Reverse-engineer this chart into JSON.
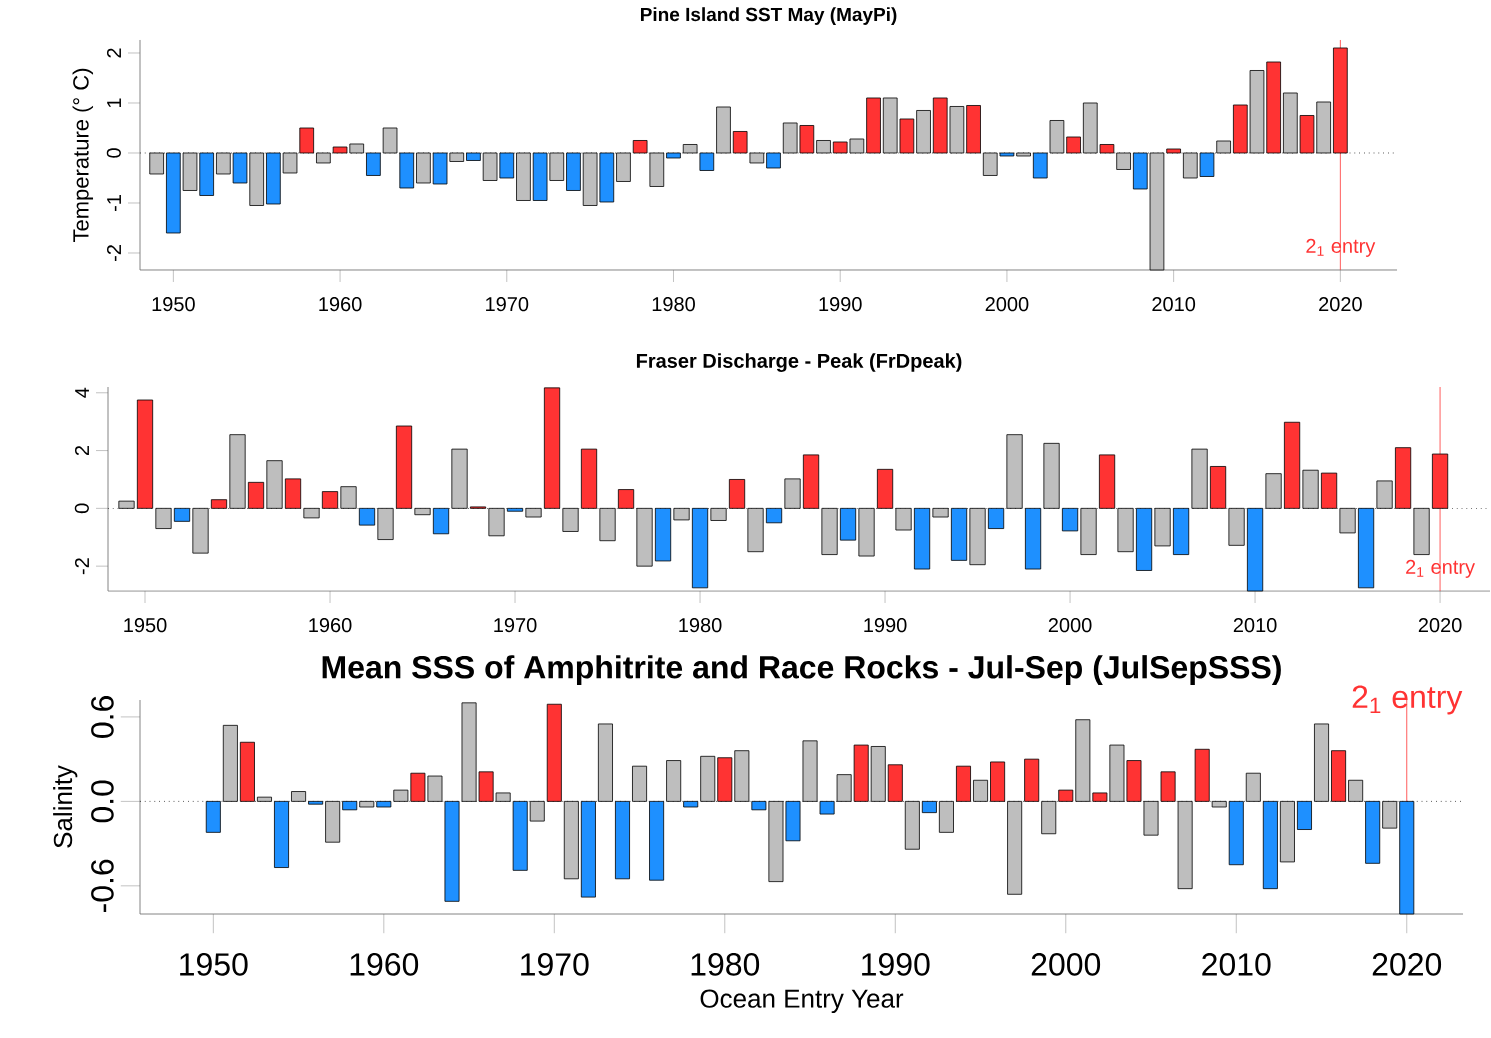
{
  "chart_data": [
    {
      "type": "bar",
      "title": "Pine Island SST May (MayPi)",
      "ylabel": "Temperature (° C)",
      "x": [
        1949,
        1950,
        1951,
        1952,
        1953,
        1954,
        1955,
        1956,
        1957,
        1958,
        1959,
        1960,
        1961,
        1962,
        1963,
        1964,
        1965,
        1966,
        1967,
        1968,
        1969,
        1970,
        1971,
        1972,
        1973,
        1974,
        1975,
        1976,
        1977,
        1978,
        1979,
        1980,
        1981,
        1982,
        1983,
        1984,
        1985,
        1986,
        1987,
        1988,
        1989,
        1990,
        1991,
        1992,
        1993,
        1994,
        1995,
        1996,
        1997,
        1998,
        1999,
        2000,
        2001,
        2002,
        2003,
        2004,
        2005,
        2006,
        2007,
        2008,
        2009,
        2010,
        2011,
        2012,
        2013,
        2014,
        2015,
        2016,
        2017,
        2018,
        2019,
        2020
      ],
      "values": [
        -0.42,
        -1.6,
        -0.75,
        -0.85,
        -0.42,
        -0.6,
        -1.05,
        -1.02,
        -0.4,
        0.5,
        -0.2,
        0.12,
        0.18,
        -0.45,
        0.5,
        -0.7,
        -0.6,
        -0.62,
        -0.17,
        -0.15,
        -0.55,
        -0.5,
        -0.95,
        -0.95,
        -0.55,
        -0.75,
        -1.05,
        -0.98,
        -0.57,
        0.25,
        -0.67,
        -0.1,
        0.17,
        -0.35,
        0.92,
        0.43,
        -0.2,
        -0.3,
        0.6,
        0.55,
        0.25,
        0.22,
        0.28,
        1.1,
        1.1,
        0.68,
        0.85,
        1.1,
        0.93,
        0.95,
        -0.45,
        -0.06,
        -0.06,
        -0.5,
        0.65,
        0.32,
        1.0,
        0.17,
        -0.33,
        -0.72,
        -2.34,
        0.08,
        -0.5,
        -0.47,
        0.24,
        0.96,
        1.65,
        1.82,
        1.2,
        0.75,
        1.02,
        2.1
      ],
      "colors": [
        "#bebebe",
        "#1e90ff",
        "#bebebe",
        "#1e90ff",
        "#bebebe",
        "#1e90ff",
        "#bebebe",
        "#1e90ff",
        "#bebebe",
        "#ff3333",
        "#bebebe",
        "#ff3333",
        "#bebebe",
        "#1e90ff",
        "#bebebe",
        "#1e90ff",
        "#bebebe",
        "#1e90ff",
        "#bebebe",
        "#1e90ff",
        "#bebebe",
        "#1e90ff",
        "#bebebe",
        "#1e90ff",
        "#bebebe",
        "#1e90ff",
        "#bebebe",
        "#1e90ff",
        "#bebebe",
        "#ff3333",
        "#bebebe",
        "#1e90ff",
        "#bebebe",
        "#1e90ff",
        "#bebebe",
        "#ff3333",
        "#bebebe",
        "#1e90ff",
        "#bebebe",
        "#ff3333",
        "#bebebe",
        "#ff3333",
        "#bebebe",
        "#ff3333",
        "#bebebe",
        "#ff3333",
        "#bebebe",
        "#ff3333",
        "#bebebe",
        "#ff3333",
        "#bebebe",
        "#1e90ff",
        "#bebebe",
        "#1e90ff",
        "#bebebe",
        "#ff3333",
        "#bebebe",
        "#ff3333",
        "#bebebe",
        "#1e90ff",
        "#bebebe",
        "#ff3333",
        "#bebebe",
        "#1e90ff",
        "#bebebe",
        "#ff3333",
        "#bebebe",
        "#ff3333",
        "#bebebe",
        "#ff3333",
        "#bebebe",
        "#ff3333"
      ],
      "xlim": [
        1948,
        2023.4
      ],
      "ylim": [
        -2.34,
        2.26
      ],
      "xticks": [
        1950,
        1960,
        1970,
        1980,
        1990,
        2000,
        2010,
        2020
      ],
      "yticks": [
        -2,
        -1,
        0,
        1,
        2
      ],
      "ref_lines": [
        {
          "axis": "y",
          "value": 0,
          "line_style": "dotted",
          "color": "#000000"
        },
        {
          "axis": "x",
          "value": 2020,
          "label": "2$_{1}$ entry",
          "color": "#ff3333"
        }
      ]
    },
    {
      "type": "bar",
      "title": "Fraser Discharge - Peak (FrDpeak)",
      "x": [
        1949,
        1950,
        1951,
        1952,
        1953,
        1954,
        1955,
        1956,
        1957,
        1958,
        1959,
        1960,
        1961,
        1962,
        1963,
        1964,
        1965,
        1966,
        1967,
        1968,
        1969,
        1970,
        1971,
        1972,
        1973,
        1974,
        1975,
        1976,
        1977,
        1978,
        1979,
        1980,
        1981,
        1982,
        1983,
        1984,
        1985,
        1986,
        1987,
        1988,
        1989,
        1990,
        1991,
        1992,
        1993,
        1994,
        1995,
        1996,
        1997,
        1998,
        1999,
        2000,
        2001,
        2002,
        2003,
        2004,
        2005,
        2006,
        2007,
        2008,
        2009,
        2010,
        2011,
        2012,
        2013,
        2014,
        2015,
        2016,
        2017,
        2018,
        2019,
        2020
      ],
      "values": [
        0.25,
        3.75,
        -0.7,
        -0.45,
        -1.55,
        0.3,
        2.55,
        0.9,
        1.65,
        1.02,
        -0.33,
        0.58,
        0.75,
        -0.58,
        -1.08,
        2.85,
        -0.22,
        -0.88,
        2.05,
        0.05,
        -0.95,
        -0.1,
        -0.3,
        4.17,
        -0.8,
        2.05,
        -1.12,
        0.65,
        -2.0,
        -1.82,
        -0.4,
        -2.75,
        -0.42,
        1.0,
        -1.5,
        -0.5,
        1.02,
        1.85,
        -1.6,
        -1.1,
        -1.65,
        1.35,
        -0.75,
        -2.1,
        -0.3,
        -1.8,
        -1.95,
        -0.7,
        2.55,
        -2.1,
        2.25,
        -0.78,
        -1.6,
        1.85,
        -1.5,
        -2.15,
        -1.3,
        -1.6,
        2.05,
        1.45,
        -1.28,
        -2.86,
        1.2,
        2.98,
        1.32,
        1.22,
        -0.85,
        -2.75,
        0.95,
        2.1,
        -1.6,
        1.88
      ],
      "colors": [
        "#bebebe",
        "#ff3333",
        "#bebebe",
        "#1e90ff",
        "#bebebe",
        "#ff3333",
        "#bebebe",
        "#ff3333",
        "#bebebe",
        "#ff3333",
        "#bebebe",
        "#ff3333",
        "#bebebe",
        "#1e90ff",
        "#bebebe",
        "#ff3333",
        "#bebebe",
        "#1e90ff",
        "#bebebe",
        "#ff3333",
        "#bebebe",
        "#1e90ff",
        "#bebebe",
        "#ff3333",
        "#bebebe",
        "#ff3333",
        "#bebebe",
        "#ff3333",
        "#bebebe",
        "#1e90ff",
        "#bebebe",
        "#1e90ff",
        "#bebebe",
        "#ff3333",
        "#bebebe",
        "#1e90ff",
        "#bebebe",
        "#ff3333",
        "#bebebe",
        "#1e90ff",
        "#bebebe",
        "#ff3333",
        "#bebebe",
        "#1e90ff",
        "#bebebe",
        "#1e90ff",
        "#bebebe",
        "#1e90ff",
        "#bebebe",
        "#1e90ff",
        "#bebebe",
        "#1e90ff",
        "#bebebe",
        "#ff3333",
        "#bebebe",
        "#1e90ff",
        "#bebebe",
        "#1e90ff",
        "#bebebe",
        "#ff3333",
        "#bebebe",
        "#1e90ff",
        "#bebebe",
        "#ff3333",
        "#bebebe",
        "#ff3333",
        "#bebebe",
        "#1e90ff",
        "#bebebe",
        "#ff3333",
        "#bebebe",
        "#ff3333"
      ],
      "xlim": [
        1948,
        2022.7
      ],
      "ylim": [
        -2.86,
        4.2
      ],
      "xticks": [
        1950,
        1960,
        1970,
        1980,
        1990,
        2000,
        2010,
        2020
      ],
      "yticks": [
        -2,
        0,
        2,
        4
      ],
      "ref_lines": [
        {
          "axis": "y",
          "value": 0,
          "line_style": "dotted",
          "color": "#000000"
        },
        {
          "axis": "x",
          "value": 2020,
          "label": "2$_{1}$ entry",
          "color": "#ff3333"
        }
      ]
    },
    {
      "type": "bar",
      "title": "Mean SSS of Amphitrite and Race Rocks - Jul-Sep (JulSepSSS)",
      "xlabel": "Ocean Entry Year",
      "ylabel": "Salinity",
      "x": [
        1950,
        1951,
        1952,
        1953,
        1954,
        1955,
        1956,
        1957,
        1958,
        1959,
        1960,
        1961,
        1962,
        1963,
        1964,
        1965,
        1966,
        1967,
        1968,
        1969,
        1970,
        1971,
        1972,
        1973,
        1974,
        1975,
        1976,
        1977,
        1978,
        1979,
        1980,
        1981,
        1982,
        1983,
        1984,
        1985,
        1986,
        1987,
        1988,
        1989,
        1990,
        1991,
        1992,
        1993,
        1994,
        1995,
        1996,
        1997,
        1998,
        1999,
        2000,
        2001,
        2002,
        2003,
        2004,
        2005,
        2006,
        2007,
        2008,
        2009,
        2010,
        2011,
        2012,
        2013,
        2014,
        2015,
        2016,
        2017,
        2018,
        2019,
        2020
      ],
      "values": [
        -0.22,
        0.54,
        0.42,
        0.03,
        -0.47,
        0.07,
        -0.02,
        -0.29,
        -0.06,
        -0.04,
        -0.04,
        0.08,
        0.2,
        0.18,
        -0.71,
        0.7,
        0.21,
        0.06,
        -0.49,
        -0.14,
        0.69,
        -0.55,
        -0.68,
        0.55,
        -0.55,
        0.25,
        -0.56,
        0.29,
        -0.04,
        0.32,
        0.31,
        0.36,
        -0.06,
        -0.57,
        -0.28,
        0.43,
        -0.09,
        0.19,
        0.4,
        0.39,
        0.26,
        -0.34,
        -0.08,
        -0.22,
        0.25,
        0.15,
        0.28,
        -0.66,
        0.3,
        -0.23,
        0.08,
        0.58,
        0.06,
        0.4,
        0.29,
        -0.24,
        0.21,
        -0.62,
        0.37,
        -0.04,
        -0.45,
        0.2,
        -0.62,
        -0.43,
        -0.2,
        0.55,
        0.36,
        0.15,
        -0.44,
        -0.19,
        -0.8
      ],
      "colors": [
        "#1e90ff",
        "#bebebe",
        "#ff3333",
        "#bebebe",
        "#1e90ff",
        "#bebebe",
        "#1e90ff",
        "#bebebe",
        "#1e90ff",
        "#bebebe",
        "#1e90ff",
        "#bebebe",
        "#ff3333",
        "#bebebe",
        "#1e90ff",
        "#bebebe",
        "#ff3333",
        "#bebebe",
        "#1e90ff",
        "#bebebe",
        "#ff3333",
        "#bebebe",
        "#1e90ff",
        "#bebebe",
        "#1e90ff",
        "#bebebe",
        "#1e90ff",
        "#bebebe",
        "#1e90ff",
        "#bebebe",
        "#ff3333",
        "#bebebe",
        "#1e90ff",
        "#bebebe",
        "#1e90ff",
        "#bebebe",
        "#1e90ff",
        "#bebebe",
        "#ff3333",
        "#bebebe",
        "#ff3333",
        "#bebebe",
        "#1e90ff",
        "#bebebe",
        "#ff3333",
        "#bebebe",
        "#ff3333",
        "#bebebe",
        "#ff3333",
        "#bebebe",
        "#ff3333",
        "#bebebe",
        "#ff3333",
        "#bebebe",
        "#ff3333",
        "#bebebe",
        "#ff3333",
        "#bebebe",
        "#ff3333",
        "#bebebe",
        "#1e90ff",
        "#bebebe",
        "#1e90ff",
        "#bebebe",
        "#1e90ff",
        "#bebebe",
        "#ff3333",
        "#bebebe",
        "#1e90ff",
        "#bebebe",
        "#1e90ff"
      ],
      "xlim": [
        1945.7,
        2023.3
      ],
      "ylim": [
        -0.8,
        0.72
      ],
      "xticks": [
        1950,
        1960,
        1970,
        1980,
        1990,
        2000,
        2010,
        2020
      ],
      "yticks": [
        {
          "value": -0.6,
          "label": "-0.6"
        },
        {
          "value": 0,
          "label": "0.0"
        },
        {
          "value": 0.6,
          "label": "0.6"
        }
      ],
      "ref_lines": [
        {
          "axis": "y",
          "value": 0,
          "line_style": "dotted",
          "color": "#000000"
        },
        {
          "axis": "x",
          "value": 2020,
          "label": "2$_{1}$ entry",
          "color": "#ff3333"
        }
      ]
    }
  ]
}
